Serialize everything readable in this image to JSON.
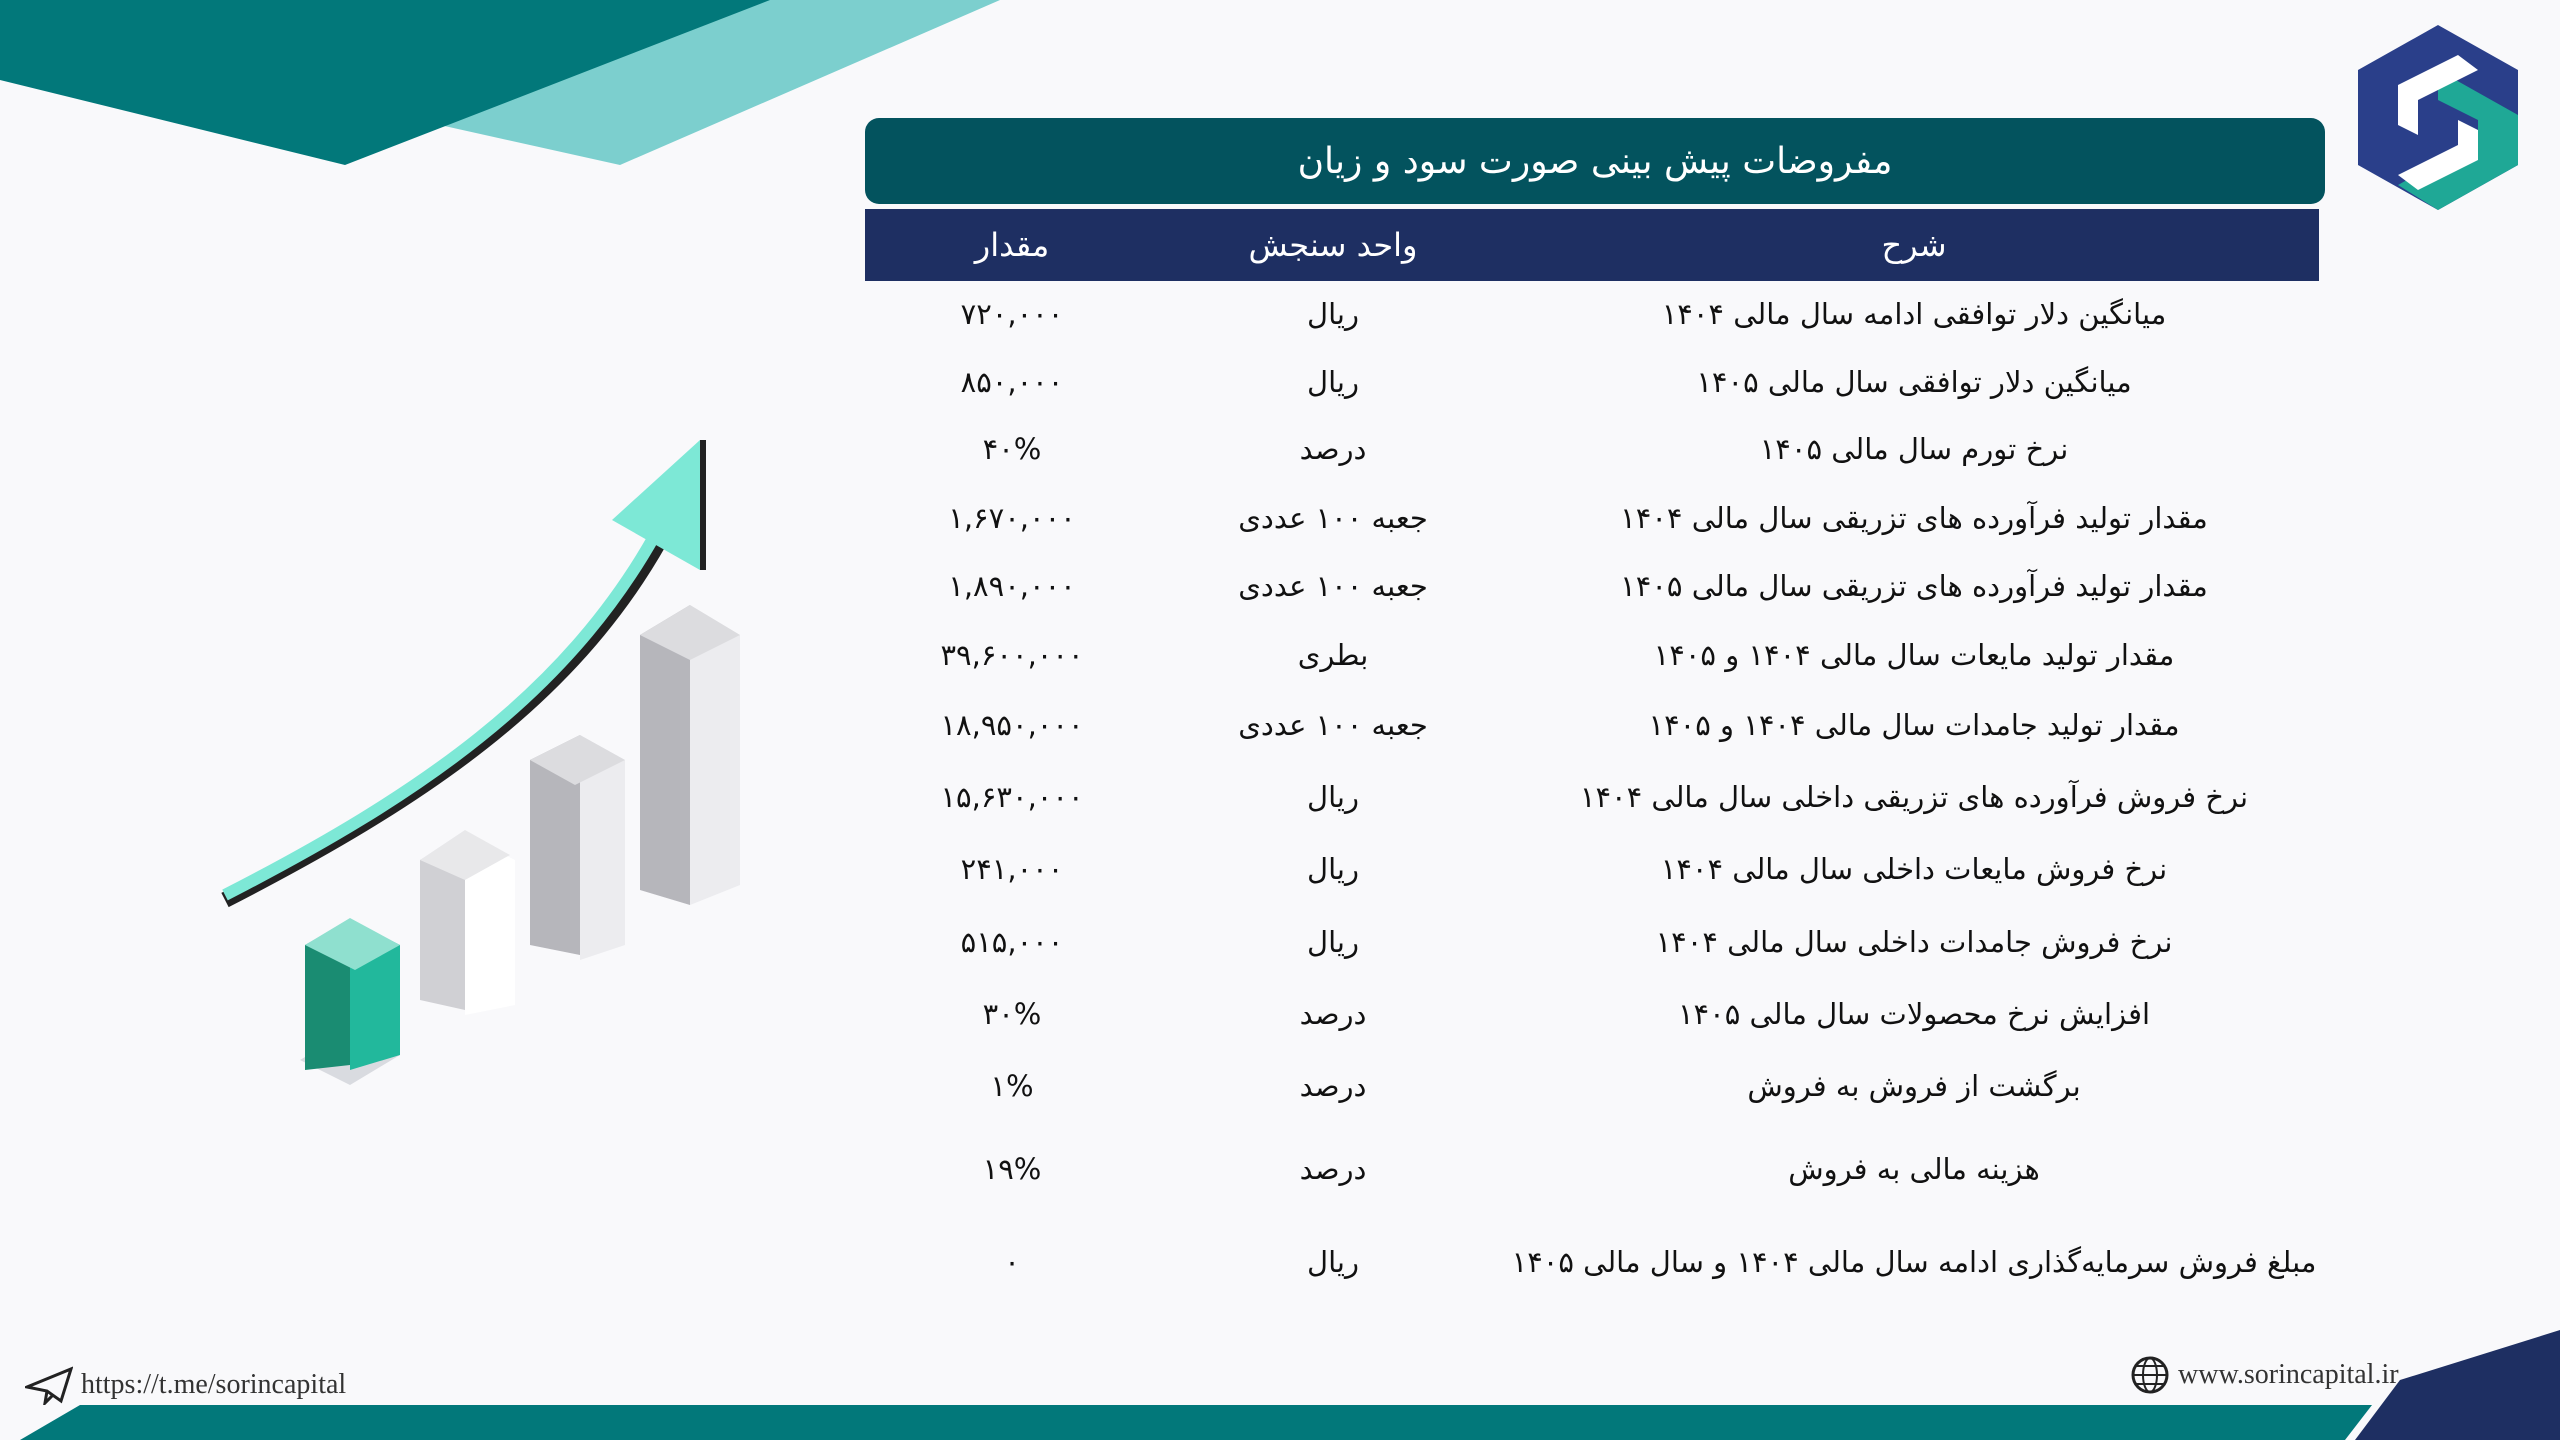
{
  "title": "مفروضات پیش بینی صورت سود و زیان",
  "columns": {
    "description": "شرح",
    "unit": "واحد سنجش",
    "amount": "مقدار"
  },
  "rows": [
    {
      "description": "میانگین دلار توافقی ادامه سال مالی ۱۴۰۴",
      "unit": "ریال",
      "amount": "۷۲۰,۰۰۰"
    },
    {
      "description": "میانگین دلار توافقی سال مالی ۱۴۰۵",
      "unit": "ریال",
      "amount": "۸۵۰,۰۰۰"
    },
    {
      "description": "نرخ تورم سال مالی ۱۴۰۵",
      "unit": "درصد",
      "amount": "۴۰%"
    },
    {
      "description": "مقدار تولید فرآورده های تزریقی سال مالی ۱۴۰۴",
      "unit": "جعبه ۱۰۰ عددی",
      "amount": "۱,۶۷۰,۰۰۰"
    },
    {
      "description": "مقدار تولید فرآورده های تزریقی سال مالی ۱۴۰۵",
      "unit": "جعبه ۱۰۰ عددی",
      "amount": "۱,۸۹۰,۰۰۰"
    },
    {
      "description": "مقدار تولید مایعات سال مالی ۱۴۰۴ و ۱۴۰۵",
      "unit": "بطری",
      "amount": "۳۹,۶۰۰,۰۰۰"
    },
    {
      "description": "مقدار تولید جامدات سال مالی ۱۴۰۴ و ۱۴۰۵",
      "unit": "جعبه ۱۰۰ عددی",
      "amount": "۱۸,۹۵۰,۰۰۰"
    },
    {
      "description": "نرخ فروش فرآورده های تزریقی داخلی سال مالی ۱۴۰۴",
      "unit": "ریال",
      "amount": "۱۵,۶۳۰,۰۰۰"
    },
    {
      "description": "نرخ فروش مایعات داخلی سال مالی ۱۴۰۴",
      "unit": "ریال",
      "amount": "۲۴۱,۰۰۰"
    },
    {
      "description": "نرخ فروش جامدات داخلی سال مالی ۱۴۰۴",
      "unit": "ریال",
      "amount": "۵۱۵,۰۰۰"
    },
    {
      "description": "افزایش نرخ محصولات سال مالی ۱۴۰۵",
      "unit": "درصد",
      "amount": "۳۰%"
    },
    {
      "description": "برگشت از فروش به فروش",
      "unit": "درصد",
      "amount": "۱%"
    },
    {
      "description": "هزینه مالی به فروش",
      "unit": "درصد",
      "amount": "۱۹%"
    },
    {
      "description": "مبلغ فروش سرمایه‌گذاری ادامه سال مالی ۱۴۰۴ و سال مالی ۱۴۰۵",
      "unit": "ریال",
      "amount": "۰"
    }
  ],
  "footer": {
    "telegram": "https://t.me/sorincapital",
    "website": "www.sorincapital.ir",
    "telegram_icon": "paper-plane-icon",
    "website_icon": "globe-icon"
  },
  "colors": {
    "title_bg": "#03535e",
    "header_bg": "#1e2f62",
    "teal": "#02787a",
    "navy": "#1e2f62",
    "mint": "#7de8d6"
  }
}
